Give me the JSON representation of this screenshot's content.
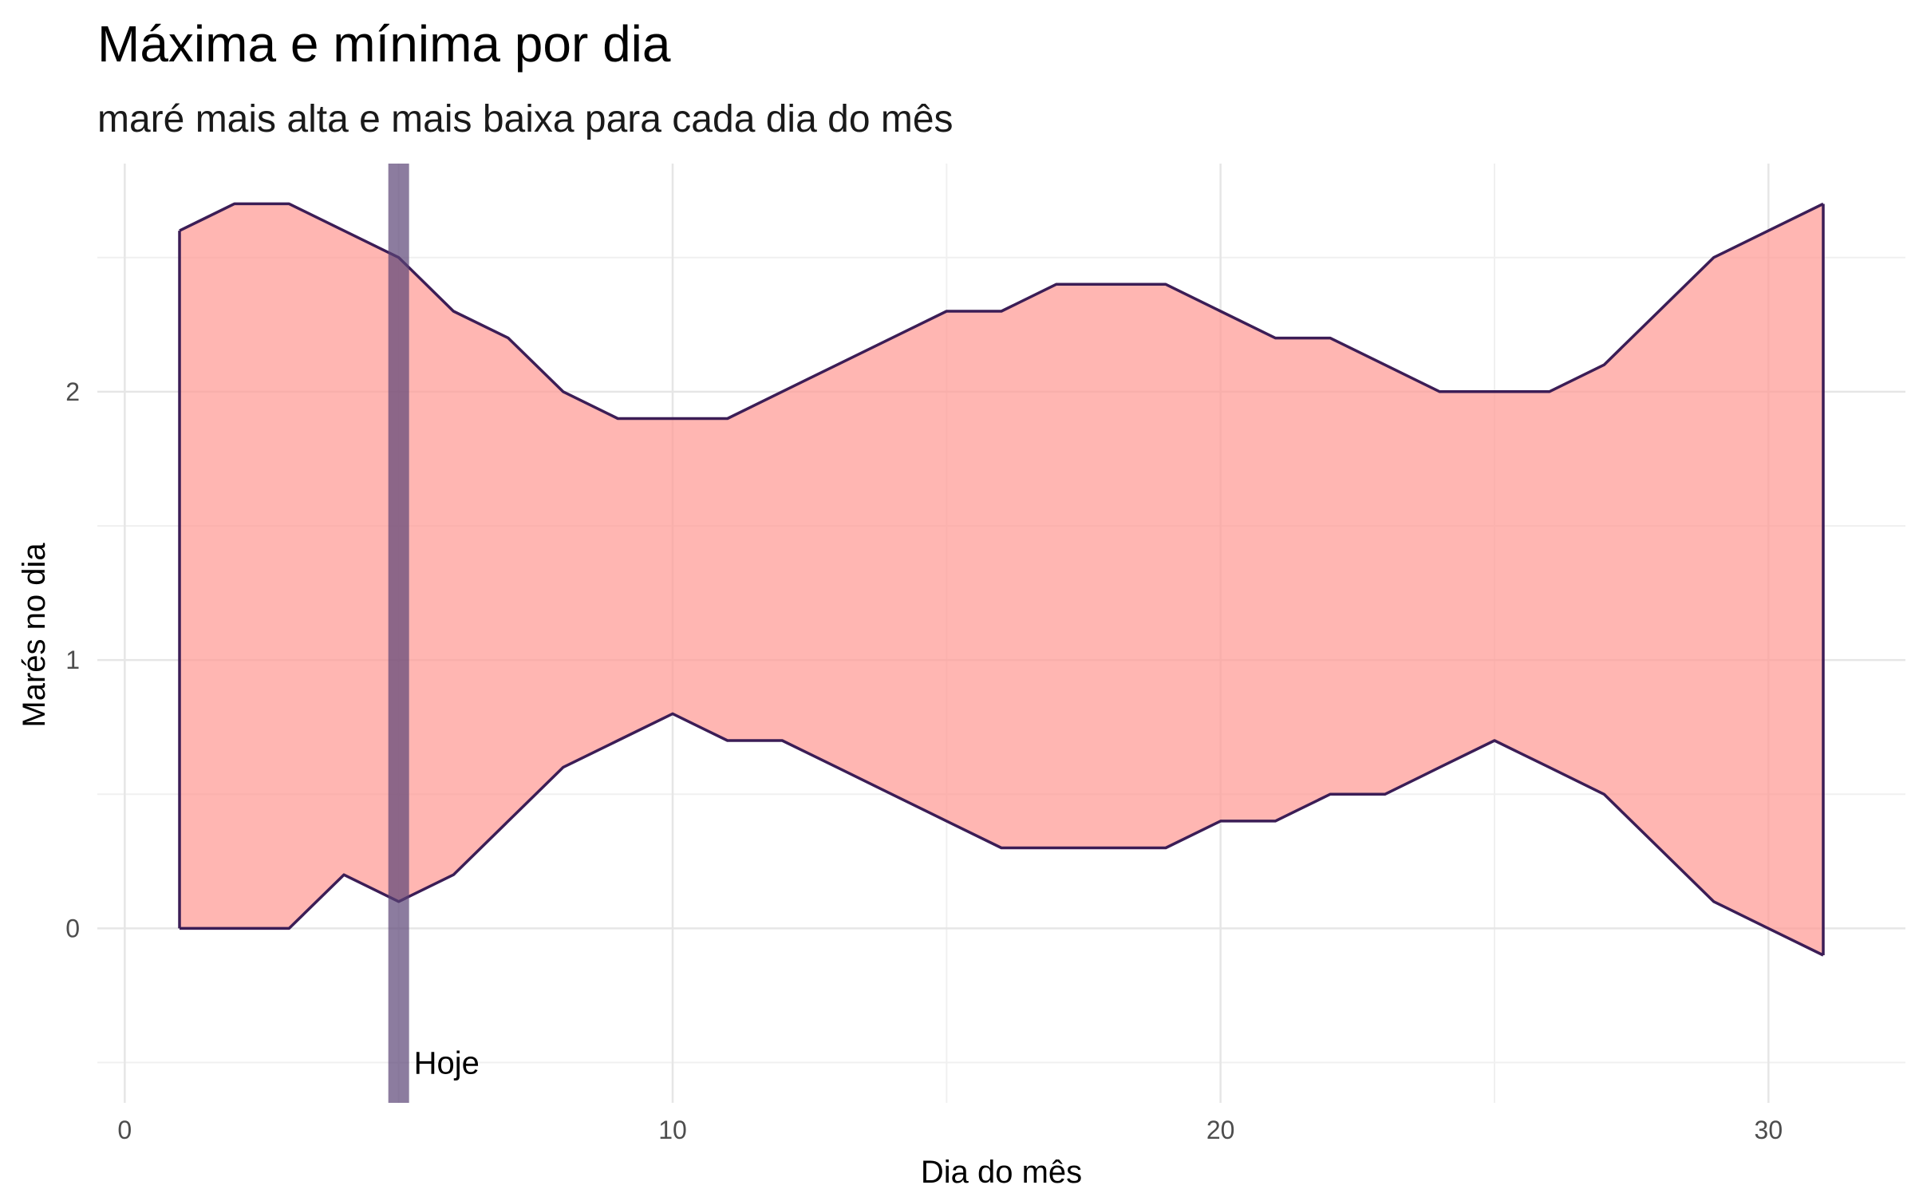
{
  "chart_data": {
    "type": "area",
    "title": "Máxima e mínima por dia",
    "subtitle": "maré mais alta e mais baixa para cada dia do mês",
    "xlabel": "Dia do mês",
    "ylabel": "Marés no dia",
    "xlim": [
      -0.5,
      32.5
    ],
    "ylim": [
      -0.65,
      2.85
    ],
    "x_ticks": [
      0,
      10,
      20,
      30
    ],
    "y_ticks": [
      0,
      1,
      2
    ],
    "grid": true,
    "colors": {
      "fill": "#FF9A94",
      "outline": "#3B1D56",
      "marker": "#5B4476"
    },
    "series": [
      {
        "role": "max",
        "x": [
          1,
          2,
          3,
          4,
          5,
          6,
          7,
          8,
          9,
          10,
          11,
          12,
          13,
          14,
          15,
          16,
          17,
          18,
          19,
          20,
          21,
          22,
          23,
          24,
          25,
          26,
          27,
          28,
          29,
          30,
          31
        ],
        "values": [
          2.6,
          2.7,
          2.7,
          2.6,
          2.5,
          2.3,
          2.2,
          2.0,
          1.9,
          1.9,
          1.9,
          2.0,
          2.1,
          2.2,
          2.3,
          2.3,
          2.4,
          2.4,
          2.4,
          2.3,
          2.2,
          2.2,
          2.1,
          2.0,
          2.0,
          2.0,
          2.1,
          2.3,
          2.5,
          2.6,
          2.7
        ]
      },
      {
        "role": "min",
        "x": [
          1,
          2,
          3,
          4,
          5,
          6,
          7,
          8,
          9,
          10,
          11,
          12,
          13,
          14,
          15,
          16,
          17,
          18,
          19,
          20,
          21,
          22,
          23,
          24,
          25,
          26,
          27,
          28,
          29,
          30,
          31
        ],
        "values": [
          0.0,
          0.0,
          0.0,
          0.2,
          0.1,
          0.2,
          0.4,
          0.6,
          0.7,
          0.8,
          0.7,
          0.7,
          0.6,
          0.5,
          0.4,
          0.3,
          0.3,
          0.3,
          0.3,
          0.4,
          0.4,
          0.5,
          0.5,
          0.6,
          0.7,
          0.6,
          0.5,
          0.3,
          0.1,
          0.0,
          -0.1
        ]
      }
    ],
    "annotation": {
      "x": 5,
      "label": "Hoje"
    }
  }
}
